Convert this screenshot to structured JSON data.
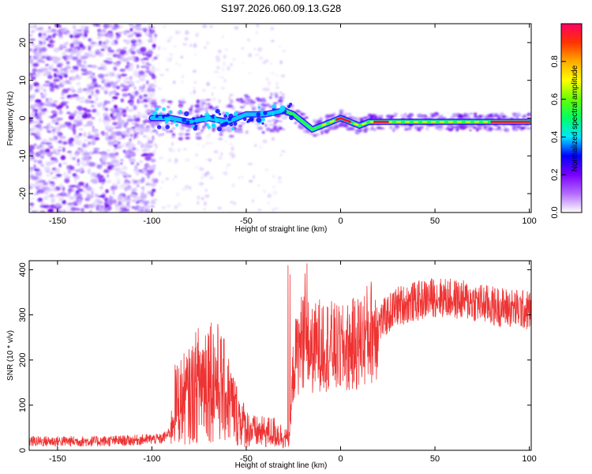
{
  "title": "S197.2026.060.09.13.G28",
  "chart_data": [
    {
      "type": "heatmap",
      "name": "spectrogram",
      "xlabel": "Height of straight line (km)",
      "ylabel": "Frequency (Hz)",
      "xlim": [
        -165,
        101
      ],
      "ylim": [
        -25,
        25
      ],
      "xticks": [
        -150,
        -100,
        -50,
        0,
        50,
        100
      ],
      "yticks": [
        -20,
        -10,
        0,
        10,
        20
      ],
      "colorbar": {
        "label": "Normalized spectral amplitude",
        "range": [
          0,
          1
        ],
        "ticks": [
          0.0,
          0.2,
          0.4,
          0.6,
          0.8
        ],
        "colormap": [
          "#ffffff",
          "#b36bff",
          "#7a00ff",
          "#0000ff",
          "#00e5ff",
          "#00ff66",
          "#66ff00",
          "#ffff00",
          "#ffaa00",
          "#ff3300",
          "#ff0066"
        ]
      },
      "ridge": {
        "x": [
          -100,
          -90,
          -80,
          -70,
          -60,
          -50,
          -40,
          -30,
          -25,
          -20,
          -15,
          -10,
          -5,
          0,
          5,
          10,
          15,
          20,
          30,
          40,
          50,
          60,
          70,
          80,
          90,
          100
        ],
        "y": [
          0,
          0,
          -1,
          0,
          -1,
          1,
          1,
          2,
          1,
          -1,
          -3,
          -2,
          -1,
          0,
          -1,
          -2,
          -1,
          -1,
          -1,
          -1,
          -1,
          -1,
          -1,
          -1,
          -1,
          -1
        ]
      }
    },
    {
      "type": "line",
      "name": "snr",
      "xlabel": "Height of straight line (km)",
      "ylabel": "SNR (10 * v/v)",
      "xlim": [
        -165,
        101
      ],
      "ylim": [
        0,
        420
      ],
      "xticks": [
        -150,
        -100,
        -50,
        0,
        50,
        100
      ],
      "yticks": [
        0,
        100,
        200,
        300,
        400
      ],
      "color": "#ee3333",
      "x": [
        -165,
        -150,
        -130,
        -110,
        -100,
        -95,
        -90,
        -88,
        -85,
        -80,
        -75,
        -70,
        -65,
        -60,
        -55,
        -50,
        -45,
        -40,
        -35,
        -30,
        -27,
        -25,
        -20,
        -15,
        -10,
        -5,
        0,
        5,
        10,
        15,
        20,
        25,
        30,
        40,
        50,
        60,
        70,
        80,
        90,
        100
      ],
      "y": [
        20,
        20,
        20,
        22,
        25,
        25,
        40,
        100,
        110,
        120,
        150,
        170,
        150,
        120,
        80,
        50,
        40,
        40,
        40,
        30,
        20,
        190,
        250,
        220,
        240,
        230,
        220,
        230,
        240,
        260,
        280,
        300,
        320,
        330,
        340,
        335,
        330,
        320,
        315,
        310
      ]
    }
  ]
}
